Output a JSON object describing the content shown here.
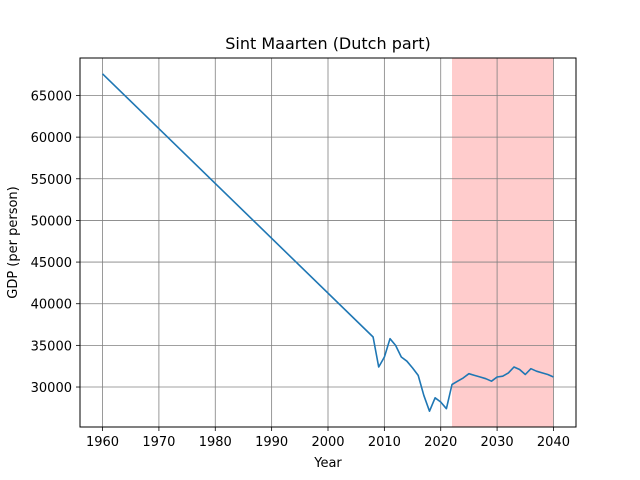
{
  "chart_data": {
    "type": "line",
    "title": "Sint Maarten (Dutch part)",
    "xlabel": "Year",
    "ylabel": "GDP (per person)",
    "xlim": [
      1956,
      2044
    ],
    "ylim": [
      25200,
      69500
    ],
    "xticks": [
      1960,
      1970,
      1980,
      1990,
      2000,
      2010,
      2020,
      2030,
      2040
    ],
    "yticks": [
      30000,
      35000,
      40000,
      45000,
      50000,
      55000,
      60000,
      65000
    ],
    "grid": true,
    "line_color": "#1f77b4",
    "shaded_region": {
      "x": [
        2022,
        2040
      ],
      "color": "#ff9999"
    },
    "series": [
      {
        "x": [
          1960,
          2008,
          2009,
          2010,
          2011,
          2012,
          2013,
          2014,
          2015,
          2016,
          2017,
          2018,
          2019,
          2020,
          2021,
          2022,
          2023,
          2024,
          2025,
          2026,
          2027,
          2028,
          2029,
          2030,
          2031,
          2032,
          2033,
          2034,
          2035,
          2036,
          2037,
          2038,
          2039,
          2040
        ],
        "values": [
          67600,
          36000,
          32400,
          33600,
          35800,
          35000,
          33600,
          33100,
          32300,
          31400,
          29000,
          27100,
          28700,
          28200,
          27400,
          30300,
          30700,
          31100,
          31600,
          31400,
          31200,
          31000,
          30700,
          31200,
          31300,
          31700,
          32400,
          32100,
          31500,
          32200,
          31900,
          31700,
          31500,
          31200
        ]
      }
    ]
  }
}
